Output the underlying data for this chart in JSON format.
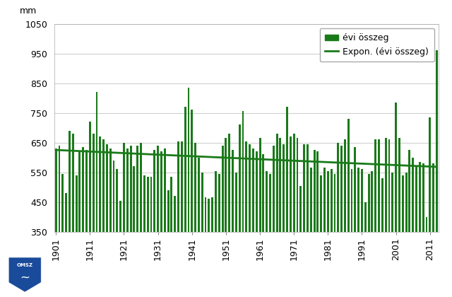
{
  "years": [
    1901,
    1902,
    1903,
    1904,
    1905,
    1906,
    1907,
    1908,
    1909,
    1910,
    1911,
    1912,
    1913,
    1914,
    1915,
    1916,
    1917,
    1918,
    1919,
    1920,
    1921,
    1922,
    1923,
    1924,
    1925,
    1926,
    1927,
    1928,
    1929,
    1930,
    1931,
    1932,
    1933,
    1934,
    1935,
    1936,
    1937,
    1938,
    1939,
    1940,
    1941,
    1942,
    1943,
    1944,
    1945,
    1946,
    1947,
    1948,
    1949,
    1950,
    1951,
    1952,
    1953,
    1954,
    1955,
    1956,
    1957,
    1958,
    1959,
    1960,
    1961,
    1962,
    1963,
    1964,
    1965,
    1966,
    1967,
    1968,
    1969,
    1970,
    1971,
    1972,
    1973,
    1974,
    1975,
    1976,
    1977,
    1978,
    1979,
    1980,
    1981,
    1982,
    1983,
    1984,
    1985,
    1986,
    1987,
    1988,
    1989,
    1990,
    1991,
    1992,
    1993,
    1994,
    1995,
    1996,
    1997,
    1998,
    1999,
    2000,
    2001,
    2002,
    2003,
    2004,
    2005,
    2006,
    2007,
    2008,
    2009,
    2010,
    2011,
    2012,
    2013
  ],
  "values": [
    630,
    640,
    545,
    480,
    690,
    680,
    540,
    620,
    635,
    625,
    720,
    680,
    820,
    670,
    660,
    645,
    630,
    590,
    560,
    455,
    650,
    630,
    640,
    570,
    640,
    650,
    540,
    535,
    535,
    625,
    640,
    620,
    630,
    490,
    535,
    470,
    655,
    655,
    770,
    835,
    760,
    650,
    600,
    550,
    465,
    460,
    465,
    555,
    545,
    640,
    665,
    680,
    625,
    550,
    710,
    755,
    655,
    645,
    630,
    620,
    665,
    610,
    555,
    545,
    640,
    680,
    665,
    645,
    770,
    670,
    680,
    665,
    505,
    645,
    645,
    565,
    625,
    620,
    540,
    565,
    555,
    560,
    545,
    650,
    640,
    660,
    730,
    560,
    635,
    565,
    560,
    450,
    545,
    555,
    660,
    660,
    530,
    665,
    660,
    550,
    785,
    665,
    540,
    550,
    625,
    600,
    570,
    585,
    580,
    400,
    735,
    580,
    960
  ],
  "bar_color": "#1a7a1a",
  "line_color": "#1a7a1a",
  "ylabel": "mm",
  "ylim": [
    350,
    1050
  ],
  "yticks": [
    350,
    450,
    550,
    650,
    750,
    850,
    950,
    1050
  ],
  "xticks": [
    1901,
    1911,
    1921,
    1931,
    1941,
    1951,
    1961,
    1971,
    1981,
    1991,
    2001,
    2011
  ],
  "legend_bar_label": "évi összeg",
  "legend_line_label": "Expon. (évi összeg)",
  "background_color": "#ffffff",
  "grid_color": "#d0d0d0",
  "exp_a": 625.0,
  "exp_b": -0.00085,
  "bar_width": 0.6,
  "figsize": [
    6.4,
    4.2
  ],
  "dpi": 100
}
